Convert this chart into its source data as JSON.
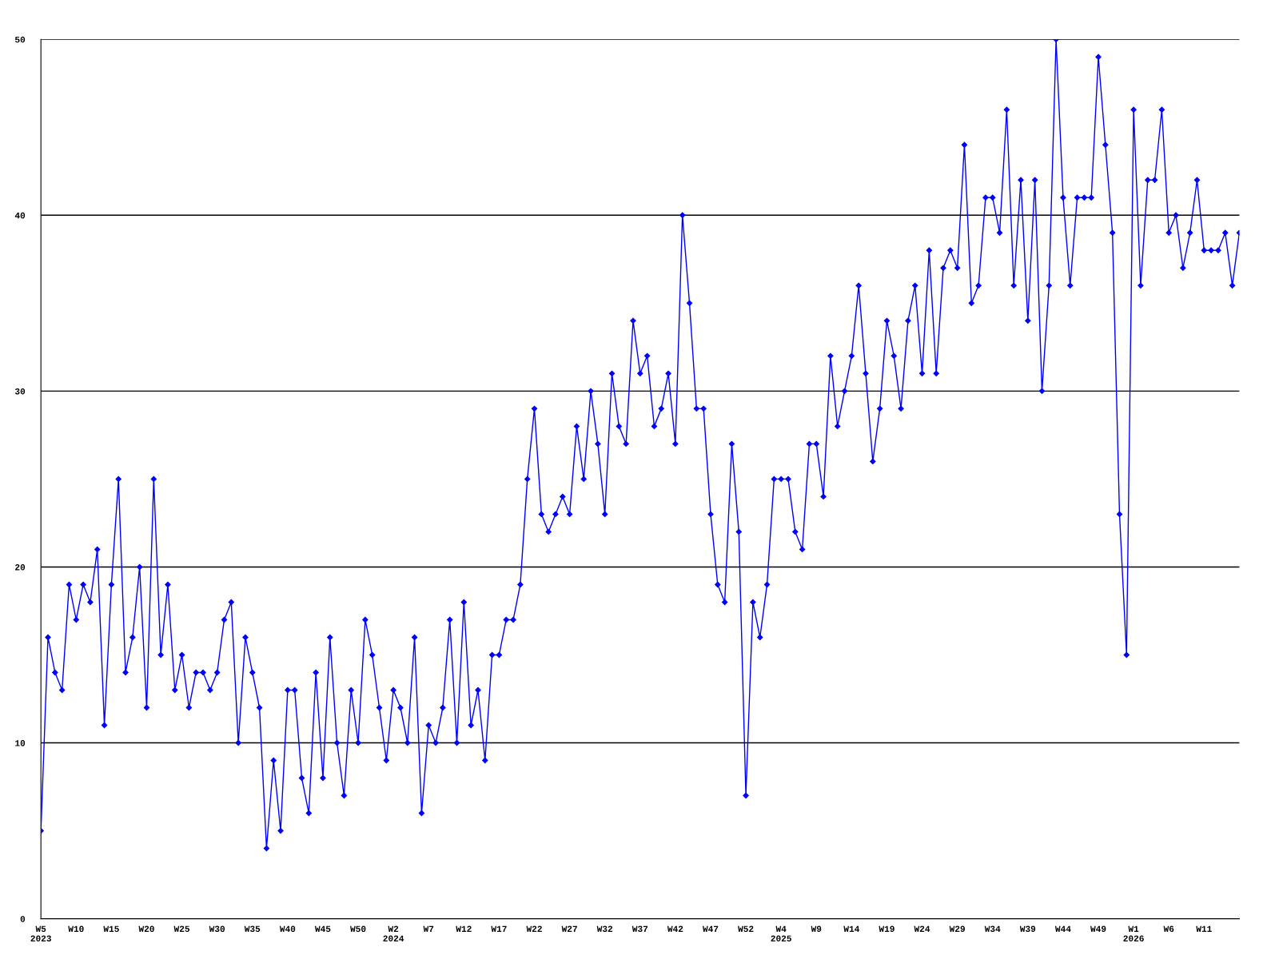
{
  "chart_data": {
    "type": "line",
    "categories": [
      "W5\n2023",
      null,
      null,
      null,
      null,
      "W10",
      null,
      null,
      null,
      null,
      "W15",
      null,
      null,
      null,
      null,
      "W20",
      null,
      null,
      null,
      null,
      "W25",
      null,
      null,
      null,
      null,
      "W30",
      null,
      null,
      null,
      null,
      "W35",
      null,
      null,
      null,
      null,
      "W40",
      null,
      null,
      null,
      null,
      "W45",
      null,
      null,
      null,
      null,
      "W50",
      null,
      null,
      null,
      null,
      "W2\n2024",
      null,
      null,
      null,
      null,
      "W7",
      null,
      null,
      null,
      null,
      "W12",
      null,
      null,
      null,
      null,
      "W17",
      null,
      null,
      null,
      null,
      "W22",
      null,
      null,
      null,
      null,
      "W27",
      null,
      null,
      null,
      null,
      "W32",
      null,
      null,
      null,
      null,
      "W37",
      null,
      null,
      null,
      null,
      "W42",
      null,
      null,
      null,
      null,
      "W47",
      null,
      null,
      null,
      null,
      "W52",
      null,
      null,
      null,
      null,
      "W4\n2025",
      null,
      null,
      null,
      null,
      "W9",
      null,
      null,
      null,
      null,
      "W14",
      null,
      null,
      null,
      null,
      "W19",
      null,
      null,
      null,
      null,
      "W24",
      null,
      null,
      null,
      null,
      "W29",
      null,
      null,
      null,
      null,
      "W34",
      null,
      null,
      null,
      null,
      "W39",
      null,
      null,
      null,
      null,
      "W44",
      null,
      null,
      null,
      null,
      "W49",
      null,
      null,
      null,
      null,
      "W1\n2026",
      null,
      null,
      null,
      null,
      "W6",
      null,
      null,
      null,
      null,
      "W11",
      null,
      null,
      null,
      null,
      null
    ],
    "series": [
      {
        "color": "#0000ff",
        "values": [
          5,
          16,
          14,
          13,
          19,
          17,
          19,
          18,
          21,
          11,
          19,
          25,
          14,
          16,
          20,
          12,
          25,
          15,
          19,
          13,
          15,
          12,
          14,
          14,
          13,
          14,
          17,
          18,
          10,
          16,
          14,
          12,
          4,
          9,
          5,
          13,
          13,
          8,
          6,
          14,
          8,
          16,
          10,
          7,
          13,
          10,
          17,
          15,
          12,
          9,
          13,
          12,
          10,
          16,
          6,
          11,
          10,
          12,
          17,
          10,
          18,
          11,
          13,
          9,
          15,
          15,
          17,
          17,
          19,
          25,
          29,
          23,
          22,
          23,
          24,
          23,
          28,
          25,
          30,
          27,
          23,
          31,
          28,
          27,
          34,
          31,
          32,
          28,
          29,
          31,
          27,
          40,
          35,
          29,
          29,
          23,
          19,
          18,
          27,
          22,
          7,
          18,
          16,
          19,
          25,
          25,
          25,
          22,
          21,
          27,
          27,
          24,
          32,
          28,
          30,
          32,
          36,
          31,
          26,
          29,
          34,
          32,
          29,
          34,
          36,
          31,
          38,
          31,
          37,
          38,
          37,
          44,
          35,
          36,
          41,
          41,
          39,
          46,
          36,
          42,
          34,
          42,
          30,
          36,
          50,
          41,
          36,
          41,
          41,
          41,
          49,
          44,
          39,
          23,
          15,
          46,
          36,
          42,
          42,
          46,
          39,
          40,
          37,
          39,
          42,
          38,
          38,
          38,
          39,
          36,
          39
        ]
      }
    ],
    "ylim": [
      0,
      50
    ],
    "yticks": [
      0,
      10,
      20,
      30,
      40,
      50
    ],
    "grid": "y",
    "marker": "diamond",
    "line_style": "solid"
  }
}
